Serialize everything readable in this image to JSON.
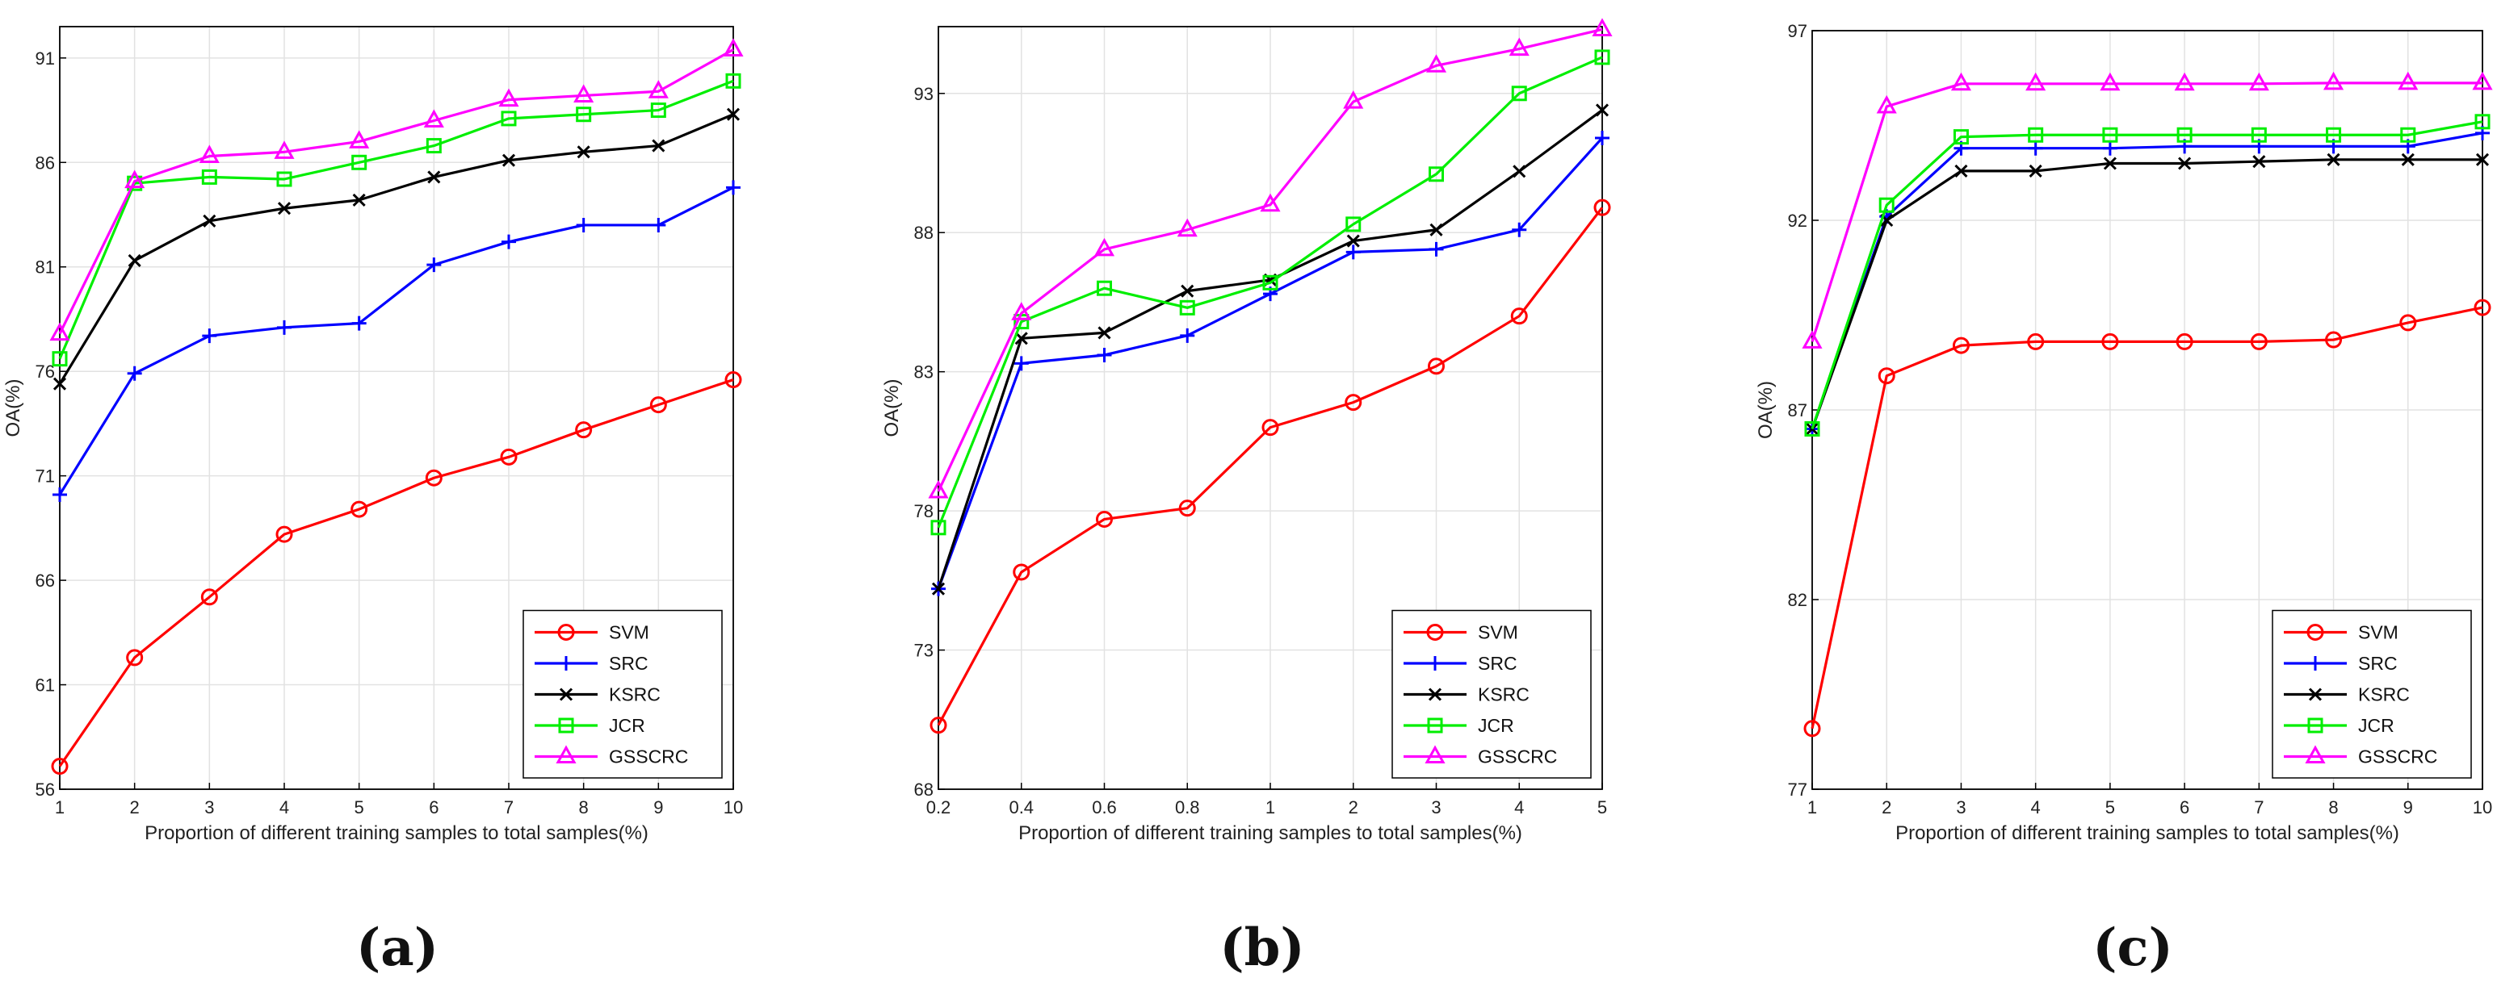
{
  "chart_data": [
    {
      "type": "line",
      "panel_label": "(a)",
      "xlabel": "Proportion of different training samples to total samples(%)",
      "ylabel": "OA(%)",
      "categories": [
        "1",
        "2",
        "3",
        "4",
        "5",
        "6",
        "7",
        "8",
        "9",
        "10"
      ],
      "ylim": [
        56,
        92.5
      ],
      "yticks": [
        56,
        61,
        66,
        71,
        76,
        81,
        86,
        91
      ],
      "grid": true,
      "legend": "bottom-right",
      "series": [
        {
          "name": "SVM",
          "color": "#ff0000",
          "marker": "circle",
          "values": [
            57.1,
            62.3,
            65.2,
            68.2,
            69.4,
            70.9,
            71.9,
            73.2,
            74.4,
            75.6
          ]
        },
        {
          "name": "SRC",
          "color": "#0000ff",
          "marker": "plus",
          "values": [
            70.1,
            75.9,
            77.7,
            78.1,
            78.3,
            81.1,
            82.2,
            83.0,
            83.0,
            84.8
          ]
        },
        {
          "name": "KSRC",
          "color": "#000000",
          "marker": "cross",
          "values": [
            75.4,
            81.3,
            83.2,
            83.8,
            84.2,
            85.3,
            86.1,
            86.5,
            86.8,
            88.3
          ]
        },
        {
          "name": "JCR",
          "color": "#00ee00",
          "marker": "square",
          "values": [
            76.6,
            85.0,
            85.3,
            85.2,
            86.0,
            86.8,
            88.1,
            88.3,
            88.5,
            89.9
          ]
        },
        {
          "name": "GSSCRC",
          "color": "#ff00ff",
          "marker": "triangle",
          "values": [
            77.8,
            85.1,
            86.3,
            86.5,
            87.0,
            88.0,
            89.0,
            89.2,
            89.4,
            91.4
          ]
        }
      ]
    },
    {
      "type": "line",
      "panel_label": "(b)",
      "xlabel": "Proportion of different training samples to total samples(%)",
      "ylabel": "OA(%)",
      "categories": [
        "0.2",
        "0.4",
        "0.6",
        "0.8",
        "1",
        "2",
        "3",
        "4",
        "5"
      ],
      "ylim": [
        68,
        95.4
      ],
      "yticks": [
        68,
        73,
        78,
        83,
        88,
        93
      ],
      "grid": true,
      "legend": "bottom-right",
      "series": [
        {
          "name": "SVM",
          "color": "#ff0000",
          "marker": "circle",
          "values": [
            70.3,
            75.8,
            77.7,
            78.1,
            81.0,
            81.9,
            83.2,
            85.0,
            88.9
          ]
        },
        {
          "name": "SRC",
          "color": "#0000ff",
          "marker": "plus",
          "values": [
            75.2,
            83.3,
            83.6,
            84.3,
            85.8,
            87.3,
            87.4,
            88.1,
            91.4
          ]
        },
        {
          "name": "KSRC",
          "color": "#000000",
          "marker": "cross",
          "values": [
            75.2,
            84.2,
            84.4,
            85.9,
            86.3,
            87.7,
            88.1,
            90.2,
            92.4
          ]
        },
        {
          "name": "JCR",
          "color": "#00ee00",
          "marker": "square",
          "values": [
            77.4,
            84.8,
            86.0,
            85.3,
            86.2,
            88.3,
            90.1,
            93.0,
            94.3
          ]
        },
        {
          "name": "GSSCRC",
          "color": "#ff00ff",
          "marker": "triangle",
          "values": [
            78.7,
            85.1,
            87.4,
            88.1,
            89.0,
            92.7,
            94.0,
            94.6,
            95.3
          ]
        }
      ]
    },
    {
      "type": "line",
      "panel_label": "(c)",
      "xlabel": "Proportion of different training samples to total samples(%)",
      "ylabel": "OA(%)",
      "categories": [
        "1",
        "2",
        "3",
        "4",
        "5",
        "6",
        "7",
        "8",
        "9",
        "10"
      ],
      "ylim": [
        77,
        97
      ],
      "yticks": [
        77,
        82,
        87,
        92,
        97
      ],
      "grid": true,
      "legend": "bottom-right",
      "series": [
        {
          "name": "SVM",
          "color": "#ff0000",
          "marker": "circle",
          "values": [
            78.6,
            87.9,
            88.7,
            88.8,
            88.8,
            88.8,
            88.8,
            88.85,
            89.3,
            89.7
          ]
        },
        {
          "name": "SRC",
          "color": "#0000ff",
          "marker": "plus",
          "values": [
            86.5,
            92.1,
            93.9,
            93.9,
            93.9,
            93.95,
            93.95,
            93.95,
            93.95,
            94.3
          ]
        },
        {
          "name": "KSRC",
          "color": "#000000",
          "marker": "cross",
          "values": [
            86.5,
            92.0,
            93.3,
            93.3,
            93.5,
            93.5,
            93.55,
            93.6,
            93.6,
            93.6
          ]
        },
        {
          "name": "JCR",
          "color": "#00ee00",
          "marker": "square",
          "values": [
            86.5,
            92.4,
            94.2,
            94.25,
            94.25,
            94.25,
            94.25,
            94.25,
            94.25,
            94.6
          ]
        },
        {
          "name": "GSSCRC",
          "color": "#ff00ff",
          "marker": "triangle",
          "values": [
            88.8,
            95.0,
            95.6,
            95.6,
            95.6,
            95.6,
            95.6,
            95.62,
            95.62,
            95.62
          ]
        }
      ]
    }
  ]
}
